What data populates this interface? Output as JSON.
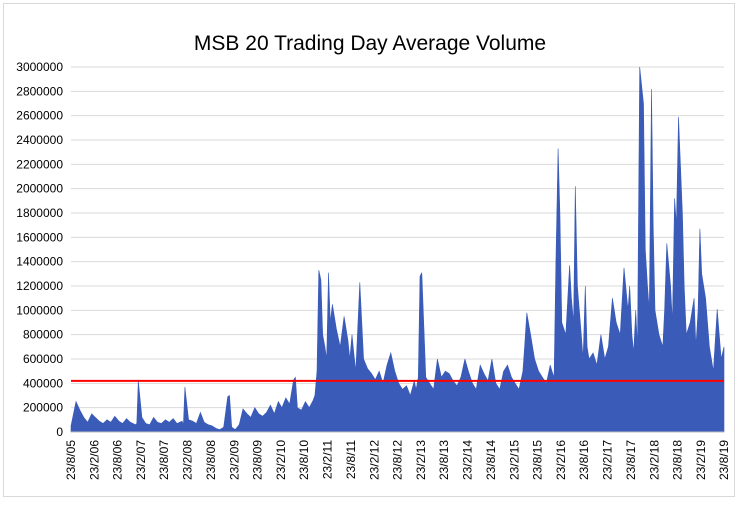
{
  "chart_data": {
    "type": "area",
    "title": "MSB 20 Trading Day Average Volume",
    "xlabel": "",
    "ylabel": "",
    "ylim": [
      0,
      3000000
    ],
    "ytick_labels": [
      "0",
      "200000",
      "400000",
      "600000",
      "800000",
      "1000000",
      "1200000",
      "1400000",
      "1600000",
      "1800000",
      "2000000",
      "2200000",
      "2400000",
      "2600000",
      "2800000",
      "3000000"
    ],
    "ytick_values": [
      0,
      200000,
      400000,
      600000,
      800000,
      1000000,
      1200000,
      1400000,
      1600000,
      1800000,
      2000000,
      2200000,
      2400000,
      2600000,
      2800000,
      3000000
    ],
    "xtick_labels": [
      "23/8/05",
      "23/2/06",
      "23/8/06",
      "23/2/07",
      "23/8/07",
      "23/2/08",
      "23/8/08",
      "23/2/09",
      "23/8/09",
      "23/2/10",
      "23/8/10",
      "23/2/11",
      "23/8/11",
      "23/2/12",
      "23/8/12",
      "23/2/13",
      "23/8/13",
      "23/2/14",
      "23/8/14",
      "23/2/15",
      "23/8/15",
      "23/2/16",
      "23/8/16",
      "23/2/17",
      "23/8/17",
      "23/2/18",
      "23/8/18",
      "23/2/19",
      "23/8/19"
    ],
    "grid": true,
    "series": [
      {
        "color": "#3a5bb8",
        "x": [
          "23/8/05",
          "1/10/05",
          "1/11/05",
          "1/12/05",
          "1/1/06",
          "1/2/06",
          "1/3/06",
          "1/4/06",
          "1/5/06",
          "1/6/06",
          "1/7/06",
          "1/8/06",
          "1/9/06",
          "1/10/06",
          "1/11/06",
          "1/12/06",
          "10/1/07",
          "20/1/07",
          "1/2/07",
          "1/3/07",
          "1/4/07",
          "1/5/07",
          "1/6/07",
          "1/7/07",
          "1/8/07",
          "1/9/07",
          "1/10/07",
          "1/11/07",
          "1/12/07",
          "10/1/08",
          "20/1/08",
          "1/2/08",
          "1/3/08",
          "1/4/08",
          "1/5/08",
          "1/6/08",
          "1/7/08",
          "1/8/08",
          "1/9/08",
          "1/10/08",
          "1/11/08",
          "1/12/08",
          "1/1/09",
          "15/1/09",
          "1/2/09",
          "1/3/09",
          "1/4/09",
          "1/5/09",
          "1/6/09",
          "1/7/09",
          "1/8/09",
          "1/9/09",
          "1/10/09",
          "1/11/09",
          "1/12/09",
          "1/1/10",
          "1/2/10",
          "1/3/10",
          "1/4/10",
          "1/5/10",
          "1/6/10",
          "15/6/10",
          "1/7/10",
          "1/8/10",
          "1/9/10",
          "1/10/10",
          "1/11/10",
          "15/11/10",
          "1/12/10",
          "15/12/10",
          "1/1/11",
          "15/1/11",
          "1/2/11",
          "15/2/11",
          "1/3/11",
          "15/3/11",
          "1/4/11",
          "1/5/11",
          "1/6/11",
          "1/7/11",
          "1/8/11",
          "15/8/11",
          "1/9/11",
          "15/9/11",
          "1/10/11",
          "1/11/11",
          "1/12/11",
          "1/1/12",
          "1/2/12",
          "1/3/12",
          "1/4/12",
          "1/5/12",
          "1/6/12",
          "1/7/12",
          "1/8/12",
          "1/9/12",
          "1/10/12",
          "1/11/12",
          "1/12/12",
          "1/1/13",
          "15/1/13",
          "1/2/13",
          "15/2/13",
          "1/3/13",
          "1/4/13",
          "1/5/13",
          "1/6/13",
          "1/7/13",
          "1/8/13",
          "1/9/13",
          "1/10/13",
          "1/11/13",
          "1/12/13",
          "1/1/14",
          "1/2/14",
          "1/3/14",
          "1/4/14",
          "1/5/14",
          "1/6/14",
          "1/7/14",
          "1/8/14",
          "1/9/14",
          "1/10/14",
          "1/11/14",
          "1/12/14",
          "1/1/15",
          "1/2/15",
          "1/3/15",
          "1/4/15",
          "1/5/15",
          "15/5/15",
          "1/6/15",
          "1/7/15",
          "1/8/15",
          "1/9/15",
          "1/10/15",
          "1/11/15",
          "1/12/15",
          "15/12/15",
          "1/1/16",
          "15/1/16",
          "1/2/16",
          "15/2/16",
          "1/3/16",
          "1/4/16",
          "1/5/16",
          "15/5/16",
          "1/6/16",
          "15/6/16",
          "1/7/16",
          "1/8/16",
          "15/8/16",
          "1/9/16",
          "15/9/16",
          "1/10/16",
          "1/11/16",
          "1/12/16",
          "1/1/17",
          "1/2/17",
          "1/3/17",
          "1/4/17",
          "1/5/17",
          "1/6/17",
          "1/7/17",
          "1/8/17",
          "15/8/17",
          "1/9/17",
          "15/9/17",
          "1/10/17",
          "15/10/17",
          "1/11/17",
          "1/12/17",
          "15/12/17",
          "1/1/18",
          "15/1/18",
          "1/2/18",
          "15/2/18",
          "1/3/18",
          "1/4/18",
          "1/5/18",
          "15/5/18",
          "1/6/18",
          "1/7/18",
          "15/7/18",
          "1/8/18",
          "15/8/18",
          "1/9/18",
          "1/10/18",
          "15/10/18",
          "1/11/18",
          "1/12/18",
          "1/1/19",
          "15/1/19",
          "1/2/19",
          "15/2/19",
          "1/3/19",
          "1/4/19",
          "1/5/19",
          "1/6/19",
          "1/7/19",
          "1/8/19",
          "23/8/19"
        ],
        "values": [
          50000,
          250000,
          180000,
          120000,
          80000,
          150000,
          120000,
          90000,
          70000,
          100000,
          80000,
          130000,
          90000,
          70000,
          110000,
          80000,
          60000,
          70000,
          420000,
          120000,
          70000,
          60000,
          120000,
          80000,
          70000,
          100000,
          80000,
          110000,
          70000,
          90000,
          60000,
          370000,
          100000,
          90000,
          70000,
          160000,
          80000,
          60000,
          50000,
          30000,
          20000,
          40000,
          290000,
          300000,
          40000,
          20000,
          60000,
          190000,
          150000,
          120000,
          200000,
          150000,
          130000,
          160000,
          220000,
          150000,
          250000,
          200000,
          280000,
          230000,
          430000,
          450000,
          200000,
          180000,
          250000,
          200000,
          260000,
          300000,
          500000,
          1330000,
          1250000,
          800000,
          700000,
          600000,
          1310000,
          900000,
          1050000,
          850000,
          700000,
          950000,
          750000,
          600000,
          800000,
          650000,
          500000,
          1230000,
          600000,
          520000,
          480000,
          430000,
          500000,
          400000,
          550000,
          650000,
          500000,
          400000,
          350000,
          380000,
          300000,
          420000,
          350000,
          450000,
          1280000,
          1310000,
          450000,
          400000,
          350000,
          600000,
          450000,
          500000,
          480000,
          420000,
          380000,
          450000,
          600000,
          500000,
          400000,
          350000,
          550000,
          480000,
          420000,
          600000,
          400000,
          350000,
          500000,
          550000,
          450000,
          400000,
          350000,
          500000,
          700000,
          980000,
          800000,
          600000,
          500000,
          450000,
          400000,
          550000,
          500000,
          450000,
          1400000,
          2330000,
          1800000,
          900000,
          800000,
          1370000,
          1100000,
          900000,
          2020000,
          1200000,
          800000,
          600000,
          1200000,
          700000,
          600000,
          650000,
          550000,
          800000,
          600000,
          700000,
          1100000,
          900000,
          800000,
          1350000,
          1000000,
          1200000,
          800000,
          650000,
          1000000,
          700000,
          3000000,
          2700000,
          1500000,
          1200000,
          1000000,
          2820000,
          1700000,
          1000000,
          800000,
          700000,
          1000000,
          1550000,
          1200000,
          900000,
          1920000,
          1700000,
          2590000,
          1800000,
          1200000,
          800000,
          900000,
          1100000,
          700000,
          1000000,
          1670000,
          1300000,
          1100000,
          700000,
          500000,
          1010000,
          600000,
          700000
        ]
      }
    ],
    "reference_line": {
      "color": "#ff0000",
      "value": 420000
    }
  }
}
